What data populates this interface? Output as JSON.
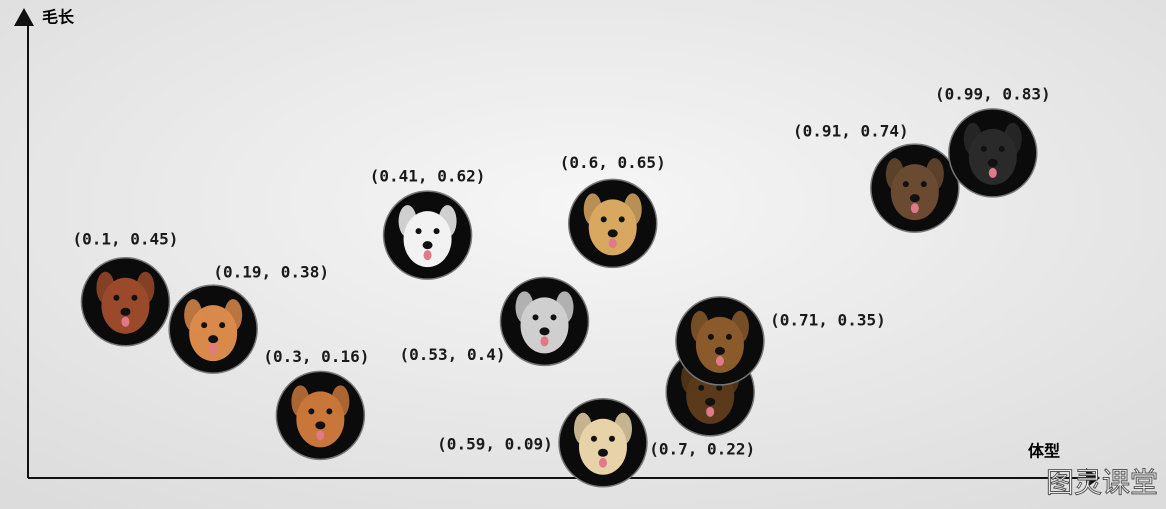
{
  "chart_data": {
    "type": "scatter",
    "x_label": "体型",
    "y_label": "毛长",
    "x": [
      0.1,
      0.19,
      0.3,
      0.41,
      0.53,
      0.59,
      0.6,
      0.7,
      0.71,
      0.91,
      0.99
    ],
    "values": [
      0.45,
      0.38,
      0.16,
      0.62,
      0.4,
      0.09,
      0.65,
      0.22,
      0.35,
      0.74,
      0.83
    ],
    "value_labels": [
      "(0.1, 0.45)",
      "(0.19, 0.38)",
      "(0.3, 0.16)",
      "(0.41, 0.62)",
      "(0.53, 0.4)",
      "(0.59, 0.09)",
      "(0.6, 0.65)",
      "(0.7, 0.22)",
      "(0.71, 0.35)",
      "(0.91, 0.74)",
      "(0.99, 0.83)"
    ],
    "xlim": [
      0,
      1.1
    ],
    "ylim": [
      0,
      1.2
    ],
    "watermark": "图灵课堂"
  }
}
